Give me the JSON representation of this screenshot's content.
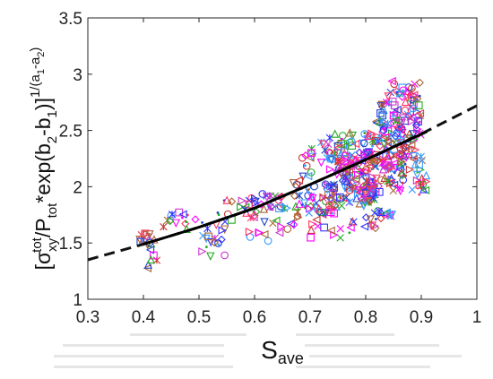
{
  "chart_data": {
    "type": "scatter",
    "xlabel": "S",
    "xlabel_sub": "ave",
    "ylabel": {
      "p1": "[σ",
      "sub1": "xy",
      "sup1": "tot",
      "p2": "/P",
      "sub2": "tot",
      "p3": "*exp(b",
      "sub3": "2",
      "p4": "-b",
      "sub4": "1",
      "p5": ")]",
      "sup_a": "1/(a",
      "sup_sub1": "1",
      "sup_b": "-a",
      "sup_sub2": "2",
      "sup_c": ")"
    },
    "xlim": [
      0.3,
      1.0
    ],
    "ylim": [
      1.0,
      3.5
    ],
    "xticks": [
      "0.3",
      "0.4",
      "0.5",
      "0.6",
      "0.7",
      "0.8",
      "0.9",
      "1"
    ],
    "yticks": [
      "1",
      "1.5",
      "2",
      "2.5",
      "3",
      "3.5"
    ],
    "grid": false,
    "fit_solid": {
      "x": [
        0.4,
        0.5,
        0.6,
        0.7,
        0.8,
        0.91
      ],
      "y": [
        1.49,
        1.64,
        1.81,
        2.02,
        2.24,
        2.49
      ]
    },
    "fit_dashed": {
      "x": [
        0.3,
        0.4,
        0.5,
        0.6,
        0.7,
        0.8,
        0.9,
        1.0
      ],
      "y": [
        1.35,
        1.49,
        1.64,
        1.81,
        2.02,
        2.24,
        2.47,
        2.72
      ]
    },
    "marker_colors": [
      "#ff00ff",
      "#cc33cc",
      "#3333ff",
      "#2244cc",
      "#cc3333",
      "#22aa22",
      "#aa6633",
      "#ff3366",
      "#3399ff"
    ],
    "marker_shapes": [
      "triangle-left",
      "triangle-right",
      "triangle-up",
      "triangle-down",
      "circle",
      "square",
      "diamond",
      "x",
      "asterisk",
      "dot"
    ],
    "clusters": [
      {
        "x": [
          0.39,
          0.42
        ],
        "y": [
          1.47,
          1.6
        ],
        "n": 14
      },
      {
        "x": [
          0.4,
          0.43
        ],
        "y": [
          1.25,
          1.45
        ],
        "n": 6
      },
      {
        "x": [
          0.43,
          0.5
        ],
        "y": [
          1.6,
          1.78
        ],
        "n": 14
      },
      {
        "x": [
          0.5,
          0.56
        ],
        "y": [
          1.38,
          1.72
        ],
        "n": 18
      },
      {
        "x": [
          0.53,
          0.62
        ],
        "y": [
          1.68,
          1.9
        ],
        "n": 22
      },
      {
        "x": [
          0.58,
          0.68
        ],
        "y": [
          1.5,
          1.85
        ],
        "n": 22
      },
      {
        "x": [
          0.6,
          0.7
        ],
        "y": [
          1.8,
          2.05
        ],
        "n": 28
      },
      {
        "x": [
          0.68,
          0.76
        ],
        "y": [
          1.75,
          2.4
        ],
        "n": 55
      },
      {
        "x": [
          0.7,
          0.78
        ],
        "y": [
          1.52,
          1.95
        ],
        "n": 30
      },
      {
        "x": [
          0.73,
          0.8
        ],
        "y": [
          1.95,
          2.5
        ],
        "n": 70
      },
      {
        "x": [
          0.76,
          0.82
        ],
        "y": [
          1.85,
          2.3
        ],
        "n": 80
      },
      {
        "x": [
          0.79,
          0.85
        ],
        "y": [
          1.6,
          2.05
        ],
        "n": 30
      },
      {
        "x": [
          0.8,
          0.87
        ],
        "y": [
          2.0,
          2.6
        ],
        "n": 70
      },
      {
        "x": [
          0.82,
          0.9
        ],
        "y": [
          1.95,
          2.85
        ],
        "n": 90
      },
      {
        "x": [
          0.84,
          0.9
        ],
        "y": [
          2.4,
          2.95
        ],
        "n": 40
      },
      {
        "x": [
          0.86,
          0.91
        ],
        "y": [
          1.85,
          2.35
        ],
        "n": 30
      }
    ]
  }
}
